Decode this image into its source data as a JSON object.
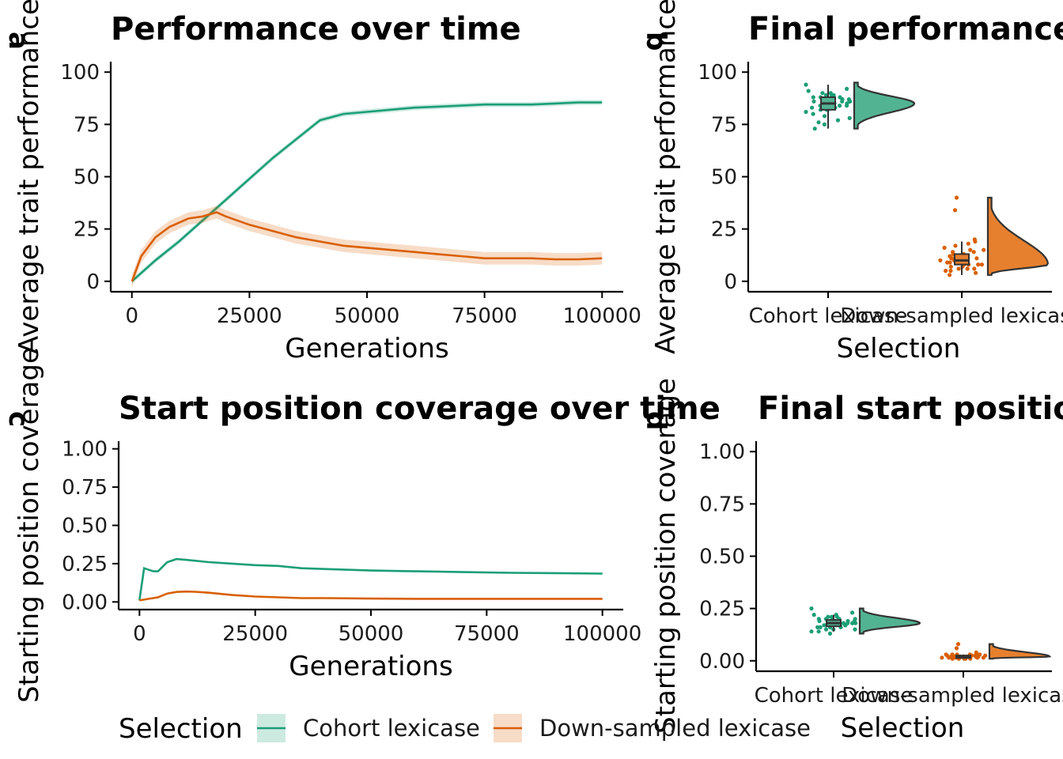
{
  "colors": {
    "cohort": "#1b9e77",
    "downsampled": "#d95f02",
    "cohort_fill": "#52b393",
    "downsampled_fill": "#e6802f",
    "axis": "#000000"
  },
  "legend": {
    "title": "Selection",
    "items": [
      {
        "key": "cohort",
        "label": "Cohort lexicase"
      },
      {
        "key": "downsampled",
        "label": "Down-sampled lexicase"
      }
    ]
  },
  "chart_data": [
    {
      "id": "a",
      "tag": "a",
      "type": "line",
      "title": "Performance over time",
      "xlabel": "Generations",
      "ylabel": "Average trait performance",
      "xlim": [
        -4500,
        104500
      ],
      "ylim": [
        -5,
        105
      ],
      "xticks": [
        0,
        25000,
        50000,
        75000,
        100000
      ],
      "yticks": [
        0,
        25,
        50,
        75,
        100
      ],
      "grid": false,
      "series": [
        {
          "key": "cohort",
          "name": "Cohort lexicase",
          "band": 1.2,
          "x": [
            0,
            5000,
            10000,
            15000,
            20000,
            25000,
            30000,
            35000,
            40000,
            45000,
            50000,
            55000,
            60000,
            65000,
            70000,
            75000,
            80000,
            85000,
            90000,
            95000,
            100000
          ],
          "y": [
            0,
            10,
            19,
            29,
            39,
            49,
            59,
            68,
            77,
            80,
            81,
            82,
            83,
            83.5,
            84,
            84.5,
            84.5,
            84.5,
            85,
            85.5,
            85.5
          ]
        },
        {
          "key": "downsampled",
          "name": "Down-sampled lexicase",
          "band": 3,
          "x": [
            0,
            2000,
            5000,
            8000,
            12000,
            15000,
            18000,
            20000,
            25000,
            30000,
            35000,
            40000,
            45000,
            50000,
            55000,
            60000,
            65000,
            70000,
            75000,
            80000,
            85000,
            90000,
            95000,
            100000
          ],
          "y": [
            0,
            12,
            21,
            26,
            30,
            31,
            33,
            31,
            27,
            24,
            21,
            19,
            17,
            16,
            15,
            14,
            13,
            12,
            11,
            11,
            11,
            10.5,
            10.5,
            11
          ]
        }
      ]
    },
    {
      "id": "b",
      "tag": "b",
      "type": "raincloud",
      "title": "Final performance",
      "xlabel": "Selection",
      "ylabel": "Average trait performance",
      "ylim": [
        -5,
        105
      ],
      "yticks": [
        0,
        25,
        50,
        75,
        100
      ],
      "categories": [
        "Cohort lexicase",
        "Down-sampled lexicase"
      ],
      "groups": [
        {
          "key": "cohort",
          "min": 73,
          "q1": 82,
          "median": 85,
          "q3": 88,
          "max": 94,
          "density_max_at": 85,
          "range": [
            73,
            95
          ],
          "points": [
            94,
            92,
            91,
            90,
            90,
            89,
            89,
            88,
            88,
            87,
            87,
            87,
            86,
            86,
            86,
            85,
            85,
            85,
            85,
            84,
            84,
            84,
            83,
            83,
            83,
            82,
            82,
            81,
            80,
            79,
            78,
            77,
            76,
            75,
            73,
            89,
            86,
            84,
            82,
            88
          ]
        },
        {
          "key": "downsampled",
          "min": 3,
          "q1": 8,
          "median": 10,
          "q3": 13,
          "max": 19,
          "density_max_at": 8,
          "range": [
            3,
            40
          ],
          "points": [
            40,
            34,
            20,
            19,
            18,
            17,
            16,
            15,
            15,
            14,
            14,
            13,
            13,
            12,
            12,
            12,
            11,
            11,
            11,
            10,
            10,
            10,
            9,
            9,
            9,
            8,
            8,
            8,
            7,
            7,
            6,
            6,
            5,
            5,
            4,
            3,
            12,
            10,
            8,
            6
          ]
        }
      ]
    },
    {
      "id": "c",
      "tag": "c",
      "type": "line",
      "title": "Start position coverage over time",
      "xlabel": "Generations",
      "ylabel": "Starting position coverage",
      "xlim": [
        -4500,
        104500
      ],
      "ylim": [
        -0.05,
        1.05
      ],
      "xticks": [
        0,
        25000,
        50000,
        75000,
        100000
      ],
      "yticks": [
        0,
        0.25,
        0.5,
        0.75,
        1.0
      ],
      "yticklabels": [
        "0.00",
        "0.25",
        "0.50",
        "0.75",
        "1.00"
      ],
      "grid": false,
      "series": [
        {
          "key": "cohort",
          "name": "Cohort lexicase",
          "band": 0.005,
          "x": [
            0,
            1000,
            2000,
            3000,
            4000,
            5000,
            6000,
            8000,
            10000,
            15000,
            20000,
            25000,
            30000,
            35000,
            40000,
            50000,
            60000,
            70000,
            80000,
            90000,
            100000
          ],
          "y": [
            0.01,
            0.22,
            0.21,
            0.2,
            0.2,
            0.23,
            0.26,
            0.28,
            0.275,
            0.26,
            0.25,
            0.24,
            0.235,
            0.22,
            0.215,
            0.205,
            0.2,
            0.195,
            0.19,
            0.188,
            0.185
          ]
        },
        {
          "key": "downsampled",
          "name": "Down-sampled lexicase",
          "band": 0.004,
          "x": [
            0,
            2000,
            4000,
            6000,
            8000,
            10000,
            12000,
            15000,
            20000,
            25000,
            30000,
            35000,
            40000,
            50000,
            60000,
            70000,
            80000,
            90000,
            100000
          ],
          "y": [
            0.01,
            0.02,
            0.03,
            0.055,
            0.065,
            0.068,
            0.066,
            0.06,
            0.045,
            0.035,
            0.03,
            0.025,
            0.025,
            0.022,
            0.02,
            0.02,
            0.02,
            0.02,
            0.02
          ]
        }
      ]
    },
    {
      "id": "d",
      "tag": "d",
      "type": "raincloud",
      "title": "Final start position coverage",
      "xlabel": "Selection",
      "ylabel": "Starting position coverage",
      "ylim": [
        -0.05,
        1.05
      ],
      "yticks": [
        0,
        0.25,
        0.5,
        0.75,
        1.0
      ],
      "yticklabels": [
        "0.00",
        "0.25",
        "0.50",
        "0.75",
        "1.00"
      ],
      "categories": [
        "Cohort lexicase",
        "Down-sampled lexicase"
      ],
      "groups": [
        {
          "key": "cohort",
          "min": 0.14,
          "q1": 0.165,
          "median": 0.18,
          "q3": 0.195,
          "max": 0.22,
          "density_max_at": 0.18,
          "range": [
            0.13,
            0.25
          ],
          "points": [
            0.25,
            0.23,
            0.22,
            0.22,
            0.21,
            0.21,
            0.2,
            0.2,
            0.2,
            0.19,
            0.19,
            0.19,
            0.19,
            0.18,
            0.18,
            0.18,
            0.18,
            0.18,
            0.17,
            0.17,
            0.17,
            0.17,
            0.16,
            0.16,
            0.16,
            0.15,
            0.15,
            0.14,
            0.14,
            0.13,
            0.2,
            0.18,
            0.17,
            0.19,
            0.16,
            0.21,
            0.15,
            0.18,
            0.2,
            0.17
          ]
        },
        {
          "key": "downsampled",
          "min": 0.01,
          "q1": 0.015,
          "median": 0.02,
          "q3": 0.025,
          "max": 0.03,
          "density_max_at": 0.02,
          "range": [
            0.01,
            0.08
          ],
          "points": [
            0.08,
            0.06,
            0.04,
            0.03,
            0.03,
            0.03,
            0.03,
            0.025,
            0.025,
            0.025,
            0.02,
            0.02,
            0.02,
            0.02,
            0.02,
            0.02,
            0.02,
            0.02,
            0.02,
            0.02,
            0.015,
            0.015,
            0.015,
            0.015,
            0.015,
            0.015,
            0.01,
            0.01,
            0.01,
            0.01,
            0.02,
            0.02,
            0.03,
            0.025,
            0.015,
            0.02,
            0.01,
            0.02,
            0.03,
            0.02
          ]
        }
      ]
    }
  ]
}
